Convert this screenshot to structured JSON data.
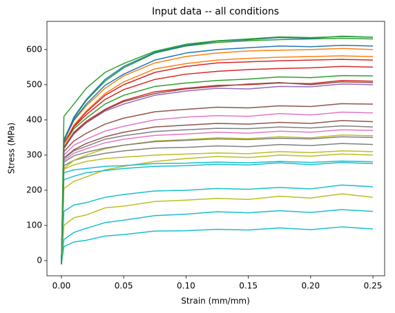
{
  "chart_data": {
    "type": "line",
    "title": "Input data -- all conditions",
    "x_label": "Strain (mm/mm)",
    "y_label": "Stress (MPa)",
    "x": [
      0,
      0.002,
      0.01,
      0.02,
      0.035,
      0.05,
      0.075,
      0.1,
      0.125,
      0.15,
      0.175,
      0.2,
      0.225,
      0.25
    ],
    "xlim": [
      -0.0116,
      0.2594
    ],
    "ylim": [
      -43,
      680
    ],
    "xticks": [
      {
        "value": 0,
        "label": "0.00"
      },
      {
        "value": 0.05,
        "label": "0.05"
      },
      {
        "value": 0.1,
        "label": "0.10"
      },
      {
        "value": 0.15,
        "label": "0.15"
      },
      {
        "value": 0.2,
        "label": "0.20"
      },
      {
        "value": 0.25,
        "label": "0.25"
      }
    ],
    "yticks": [
      0,
      100,
      200,
      300,
      400,
      500,
      600
    ],
    "series": [
      {
        "color": "#17becf",
        "values": [
          -10,
          40,
          53,
          58,
          70,
          74,
          84,
          85,
          89,
          87,
          93,
          88,
          96,
          90
        ]
      },
      {
        "color": "#17becf",
        "values": [
          -10,
          60,
          80,
          92,
          108,
          115,
          128,
          132,
          139,
          136,
          142,
          137,
          145,
          140
        ]
      },
      {
        "color": "#bcbd22",
        "values": [
          -10,
          100,
          122,
          130,
          150,
          155,
          168,
          172,
          177,
          174,
          183,
          178,
          190,
          180
        ]
      },
      {
        "color": "#17becf",
        "values": [
          -10,
          140,
          158,
          165,
          180,
          188,
          198,
          200,
          205,
          203,
          208,
          204,
          215,
          210
        ]
      },
      {
        "color": "#bcbd22",
        "values": [
          -10,
          205,
          225,
          238,
          258,
          268,
          282,
          290,
          296,
          293,
          300,
          297,
          303,
          300
        ]
      },
      {
        "color": "#17becf",
        "values": [
          -10,
          230,
          240,
          250,
          256,
          262,
          268,
          270,
          274,
          272,
          278,
          273,
          279,
          276
        ]
      },
      {
        "color": "#17becf",
        "values": [
          -10,
          250,
          258,
          262,
          268,
          270,
          276,
          277,
          280,
          278,
          282,
          279,
          283,
          281
        ]
      },
      {
        "color": "#bcbd22",
        "values": [
          -10,
          260,
          272,
          282,
          290,
          294,
          300,
          303,
          306,
          304,
          310,
          307,
          312,
          310
        ]
      },
      {
        "color": "#7f7f7f",
        "values": [
          -10,
          270,
          285,
          295,
          305,
          312,
          320,
          322,
          326,
          324,
          330,
          327,
          333,
          330
        ]
      },
      {
        "color": "#bcbd22",
        "values": [
          -10,
          262,
          285,
          300,
          318,
          328,
          340,
          344,
          349,
          347,
          352,
          349,
          357,
          355
        ]
      },
      {
        "color": "#7f7f7f",
        "values": [
          -10,
          280,
          298,
          308,
          320,
          328,
          338,
          342,
          346,
          344,
          348,
          346,
          352,
          350
        ]
      },
      {
        "color": "#e377c2",
        "values": [
          -10,
          285,
          305,
          318,
          335,
          345,
          356,
          360,
          365,
          362,
          368,
          365,
          372,
          370
        ]
      },
      {
        "color": "#8c564b",
        "values": [
          -10,
          292,
          315,
          333,
          352,
          365,
          380,
          385,
          390,
          388,
          393,
          390,
          398,
          395
        ]
      },
      {
        "color": "#e377c2",
        "values": [
          -10,
          300,
          328,
          345,
          368,
          382,
          400,
          408,
          412,
          410,
          418,
          414,
          422,
          420
        ]
      },
      {
        "color": "#7f7f7f",
        "values": [
          -10,
          290,
          312,
          325,
          345,
          355,
          367,
          372,
          376,
          375,
          380,
          377,
          383,
          380
        ]
      },
      {
        "color": "#8c564b",
        "values": [
          -10,
          310,
          340,
          362,
          388,
          405,
          423,
          430,
          436,
          434,
          440,
          438,
          446,
          445
        ]
      },
      {
        "color": "#9467bd",
        "values": [
          -10,
          320,
          360,
          392,
          425,
          445,
          470,
          482,
          490,
          488,
          495,
          494,
          502,
          500
        ]
      },
      {
        "color": "#d62728",
        "values": [
          -10,
          322,
          365,
          396,
          430,
          455,
          480,
          490,
          498,
          500,
          505,
          503,
          512,
          510
        ]
      },
      {
        "color": "#8c564b",
        "values": [
          -10,
          318,
          362,
          392,
          428,
          452,
          475,
          488,
          495,
          502,
          506,
          500,
          508,
          506
        ]
      },
      {
        "color": "#2ca02c",
        "values": [
          -10,
          330,
          375,
          405,
          445,
          470,
          495,
          505,
          512,
          516,
          522,
          520,
          526,
          525
        ]
      },
      {
        "color": "#d62728",
        "values": [
          -10,
          332,
          380,
          415,
          458,
          486,
          515,
          530,
          538,
          543,
          546,
          548,
          552,
          550
        ]
      },
      {
        "color": "#ff7f0e",
        "values": [
          -10,
          330,
          385,
          425,
          475,
          508,
          545,
          560,
          570,
          575,
          578,
          580,
          582,
          580
        ]
      },
      {
        "color": "#d62728",
        "values": [
          -10,
          335,
          382,
          422,
          470,
          500,
          535,
          552,
          562,
          565,
          568,
          570,
          572,
          570
        ]
      },
      {
        "color": "#ff7f0e",
        "values": [
          -10,
          340,
          398,
          440,
          490,
          525,
          562,
          580,
          590,
          596,
          598,
          600,
          603,
          600
        ]
      },
      {
        "color": "#1f77b4",
        "values": [
          -10,
          342,
          400,
          445,
          498,
          530,
          570,
          590,
          600,
          605,
          610,
          608,
          612,
          610
        ]
      },
      {
        "color": "#2ca02c",
        "values": [
          -10,
          345,
          405,
          455,
          510,
          548,
          590,
          610,
          620,
          625,
          628,
          630,
          632,
          630
        ]
      },
      {
        "color": "#1f77b4",
        "values": [
          -10,
          340,
          408,
          458,
          515,
          552,
          592,
          612,
          624,
          628,
          634,
          632,
          638,
          635
        ]
      },
      {
        "color": "#2ca02c",
        "values": [
          -10,
          410,
          445,
          490,
          535,
          560,
          595,
          615,
          625,
          630,
          636,
          634,
          637,
          635
        ]
      }
    ]
  }
}
